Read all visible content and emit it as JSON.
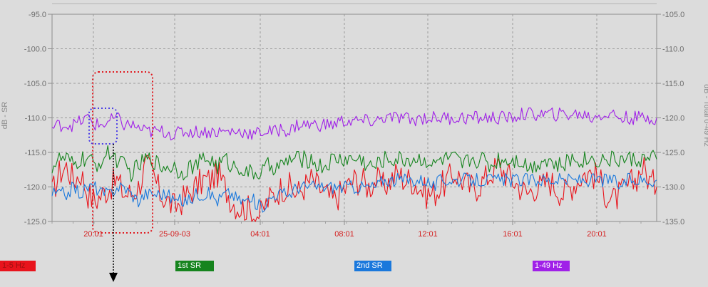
{
  "chart_data": {
    "type": "line",
    "ylabel_left": "dB - SR",
    "ylabel_right": "dB - Total 0-49 Hz",
    "y_left_ticks": [
      "-95.0",
      "-100.0",
      "-105.0",
      "-110.0",
      "-115.0",
      "-120.0",
      "-125.0"
    ],
    "y_right_ticks": [
      "-105.0",
      "-110.0",
      "-115.0",
      "-120.0",
      "-125.0",
      "-130.0",
      "-135.0"
    ],
    "ylim_left": [
      -125,
      -95
    ],
    "ylim_right": [
      -135,
      -105
    ],
    "x_ticks": [
      "20:01",
      "25-09-03",
      "04:01",
      "08:01",
      "12:01",
      "16:01",
      "20:01"
    ],
    "grid": true,
    "series": [
      {
        "name": "1-5 Hz",
        "color": "#e8141c",
        "axis": "left",
        "values": [
          -121,
          -118,
          -117,
          -119,
          -118,
          -121,
          -122,
          -121,
          -120,
          -119,
          -121,
          -121,
          -120,
          -117,
          -118,
          -121,
          -122,
          -123,
          -122,
          -121,
          -120,
          -119,
          -119,
          -118,
          -120,
          -122,
          -123,
          -123,
          -124,
          -124,
          -122,
          -121,
          -120,
          -120,
          -121,
          -120,
          -119,
          -120,
          -121,
          -122,
          -121,
          -120,
          -119,
          -119,
          -120,
          -119,
          -120,
          -119,
          -118,
          -119,
          -119,
          -120,
          -121,
          -121,
          -120,
          -119,
          -118,
          -119,
          -120,
          -120,
          -119,
          -118,
          -117,
          -118,
          -119,
          -120,
          -121,
          -120,
          -120,
          -119,
          -120,
          -121,
          -120,
          -119,
          -118,
          -118,
          -119,
          -121,
          -122,
          -121,
          -120,
          -119,
          -117,
          -119,
          -120
        ]
      },
      {
        "name": "1st SR",
        "color": "#16841e",
        "axis": "left",
        "values": [
          -117,
          -116,
          -116,
          -117,
          -116,
          -116,
          -117,
          -116,
          -115,
          -116,
          -117,
          -118,
          -117,
          -116,
          -116,
          -117,
          -117,
          -117,
          -118,
          -117,
          -117,
          -116,
          -116,
          -117,
          -116,
          -117,
          -117,
          -118,
          -118,
          -118,
          -117,
          -117,
          -117,
          -116,
          -116,
          -116,
          -116,
          -117,
          -117,
          -116,
          -116,
          -116,
          -116,
          -116,
          -117,
          -117,
          -116,
          -116,
          -116,
          -116,
          -116,
          -116,
          -116,
          -117,
          -116,
          -116,
          -116,
          -117,
          -116,
          -116,
          -116,
          -117,
          -116,
          -116,
          -116,
          -116,
          -117,
          -117,
          -116,
          -116,
          -117,
          -117,
          -116,
          -116,
          -116,
          -116,
          -116,
          -116,
          -116,
          -116,
          -116,
          -116,
          -116,
          -116,
          -116
        ]
      },
      {
        "name": "2nd SR",
        "color": "#1a78dc",
        "axis": "left",
        "values": [
          -121,
          -121,
          -121,
          -120,
          -121,
          -120,
          -120,
          -121,
          -121,
          -120,
          -120,
          -121,
          -122,
          -121,
          -121,
          -121,
          -121,
          -122,
          -122,
          -122,
          -121,
          -121,
          -121,
          -122,
          -121,
          -121,
          -122,
          -122,
          -122,
          -123,
          -122,
          -121,
          -121,
          -121,
          -120,
          -120,
          -120,
          -120,
          -120,
          -120,
          -120,
          -120,
          -120,
          -120,
          -120,
          -120,
          -119,
          -119,
          -119,
          -119,
          -119,
          -119,
          -119,
          -120,
          -119,
          -119,
          -119,
          -119,
          -119,
          -119,
          -119,
          -119,
          -119,
          -119,
          -119,
          -119,
          -119,
          -119,
          -119,
          -119,
          -119,
          -119,
          -119,
          -119,
          -119,
          -119,
          -119,
          -119,
          -119,
          -120,
          -119,
          -119,
          -119,
          -119,
          -119
        ]
      },
      {
        "name": "1-49 Hz",
        "color": "#a020e8",
        "axis": "right",
        "values": [
          -121.5,
          -121,
          -121,
          -121,
          -120.5,
          -120,
          -121,
          -121,
          -120.5,
          -120,
          -121,
          -121,
          -121.5,
          -122,
          -122,
          -122,
          -122,
          -122.5,
          -122,
          -122,
          -122,
          -122,
          -122,
          -122,
          -122,
          -122,
          -122,
          -122,
          -122.5,
          -122,
          -122,
          -122,
          -121.5,
          -122,
          -121,
          -121,
          -121,
          -121,
          -121,
          -121,
          -120.5,
          -120.5,
          -120.5,
          -120.5,
          -120.5,
          -120.5,
          -120,
          -120,
          -120,
          -120,
          -120.5,
          -120,
          -120,
          -120,
          -120,
          -120,
          -120,
          -120,
          -120,
          -120,
          -120,
          -120,
          -120,
          -120,
          -120,
          -119.5,
          -119.5,
          -119.5,
          -119.5,
          -119.5,
          -119.5,
          -119.5,
          -119.5,
          -119.5,
          -119.5,
          -120,
          -119.5,
          -119.5,
          -119.5,
          -120,
          -120,
          -120,
          -120,
          -120,
          -120
        ]
      }
    ]
  }
}
